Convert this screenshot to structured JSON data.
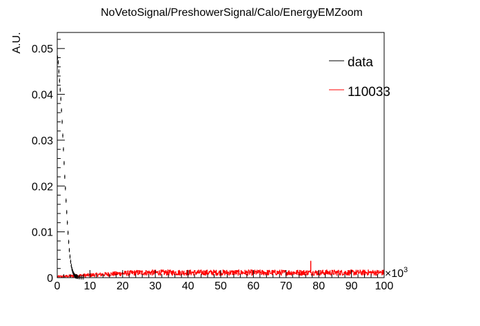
{
  "chart_data": {
    "type": "line",
    "title": "NoVetoSignal/PreshowerSignal/Calo/EnergyEMZoom",
    "xlabel": "",
    "ylabel": "A.U.",
    "x_multiplier_label": "×10",
    "x_multiplier_exponent": "3",
    "xlim": [
      0,
      100
    ],
    "ylim": [
      0,
      0.0535
    ],
    "x_ticks": [
      "0",
      "10",
      "20",
      "30",
      "40",
      "50",
      "60",
      "70",
      "80",
      "90",
      "100"
    ],
    "y_ticks": [
      "0",
      "0.01",
      "0.02",
      "0.03",
      "0.04",
      "0.05"
    ],
    "grid": false,
    "legend_position": "top-right",
    "series": [
      {
        "name": "data",
        "color": "#000000",
        "style": "markers",
        "x": [
          0.1,
          0.3,
          0.5,
          0.7,
          0.9,
          1.1,
          1.3,
          1.5,
          1.7,
          1.9,
          2.1,
          2.3,
          2.5,
          2.7,
          2.9,
          3.1,
          3.3,
          3.5,
          3.7,
          3.9,
          4.1,
          4.3,
          4.5,
          4.7,
          4.9,
          5.1,
          5.3,
          5.5,
          5.7,
          5.9,
          6.2,
          6.6,
          7.0,
          7.5,
          8.0
        ],
        "y": [
          0.048,
          0.047,
          0.045,
          0.043,
          0.041,
          0.039,
          0.0365,
          0.034,
          0.031,
          0.028,
          0.025,
          0.022,
          0.0195,
          0.0168,
          0.0143,
          0.012,
          0.0098,
          0.0078,
          0.006,
          0.0046,
          0.0035,
          0.0026,
          0.0019,
          0.0014,
          0.001,
          0.0007,
          0.0005,
          0.00035,
          0.00025,
          0.0002,
          0.00015,
          0.0001,
          8e-05,
          6e-05,
          4e-05
        ]
      },
      {
        "name": "110033",
        "color": "#ff0000",
        "style": "histogram",
        "x_start": 0,
        "x_end": 100,
        "baseline_start": 0.0002,
        "baseline_end": 0.0011,
        "noise": 0.0006,
        "spike_x": 77.5,
        "spike_y": 0.0036
      }
    ]
  }
}
